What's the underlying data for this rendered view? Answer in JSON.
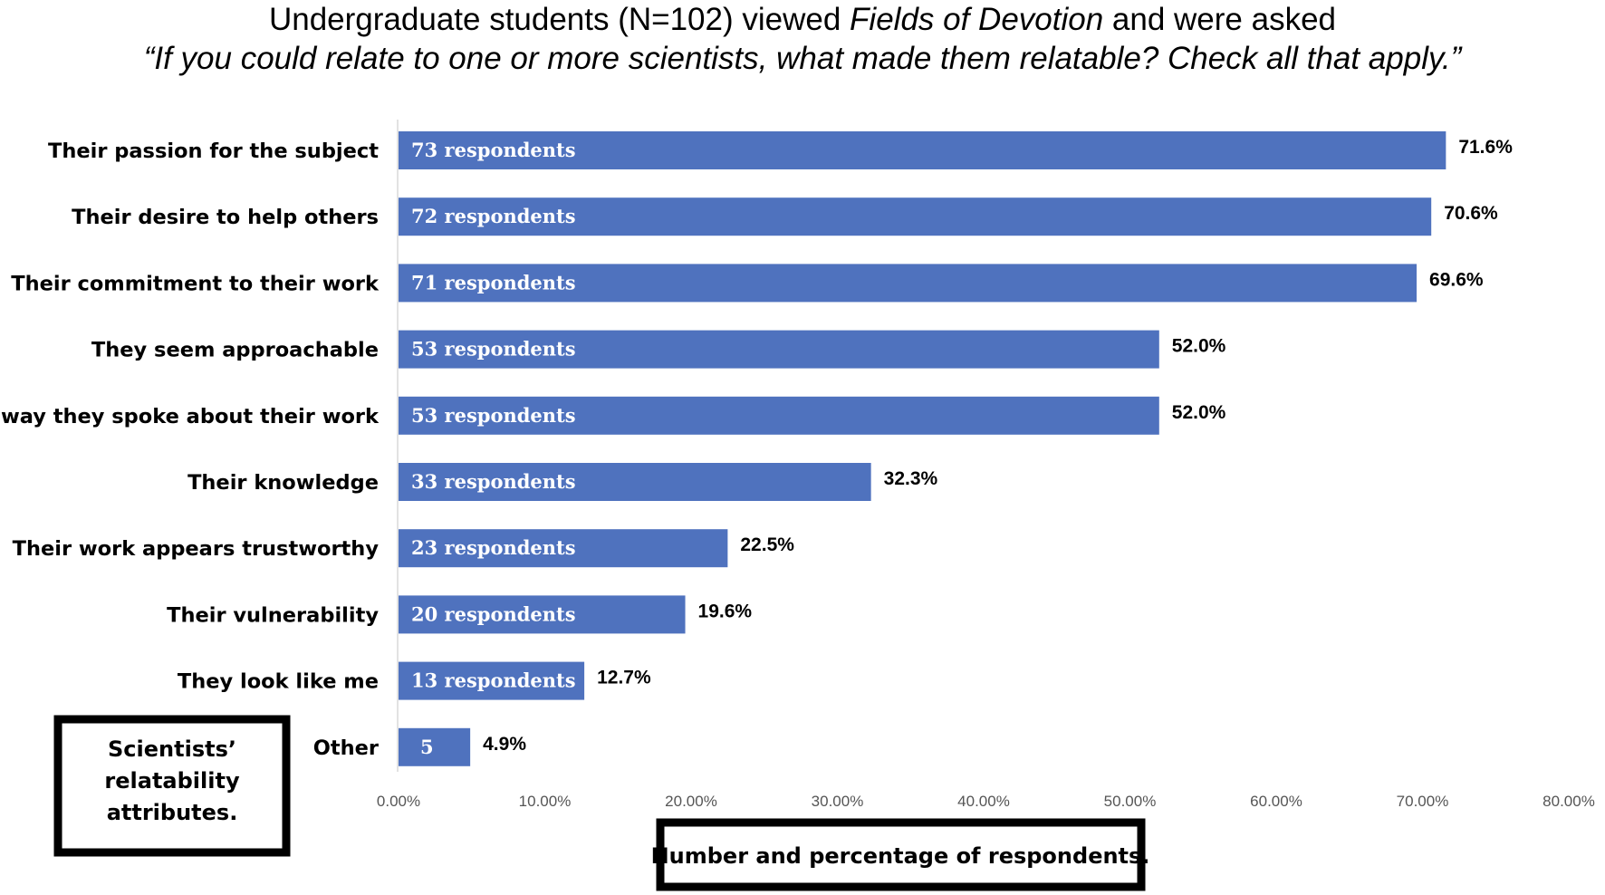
{
  "chart_data": {
    "type": "bar",
    "orientation": "horizontal",
    "title": "Undergraduate students (N=102) viewed ",
    "title_italic": "Fields of Devotion",
    "title_end": " and were asked",
    "subtitle": "“If you could relate to one or more scientists, what made them relatable? Check all that apply.”",
    "categories": [
      "Their passion for the subject",
      "Their desire to help others",
      "Their commitment to their work",
      "They seem approachable",
      "The way they spoke about their work",
      "Their knowledge",
      "Their work appears trustworthy",
      "Their vulnerability",
      "They look like me",
      "Other"
    ],
    "values": [
      71.6,
      70.6,
      69.6,
      52.0,
      52.0,
      32.3,
      22.5,
      19.6,
      12.7,
      4.9
    ],
    "bar_labels": [
      "73 respondents",
      "72 respondents",
      "71 respondents",
      "53 respondents",
      "53 respondents",
      "33 respondents",
      "23 respondents",
      "20 respondents",
      "13 respondents",
      "5"
    ],
    "value_labels": [
      "71.6%",
      "70.6%",
      "69.6%",
      "52.0%",
      "52.0%",
      "32.3%",
      "22.5%",
      "19.6%",
      "12.7%",
      "4.9%"
    ],
    "xlim": [
      0,
      80
    ],
    "xticks": [
      "0.00%",
      "10.00%",
      "20.00%",
      "30.00%",
      "40.00%",
      "50.00%",
      "60.00%",
      "70.00%",
      "80.00%"
    ],
    "ylabel_box": [
      "Scientists’",
      "relatability",
      "attributes."
    ],
    "xlabel_box": "Number and percentage of respondents.",
    "bar_color": "#4f72be",
    "grid": false
  }
}
